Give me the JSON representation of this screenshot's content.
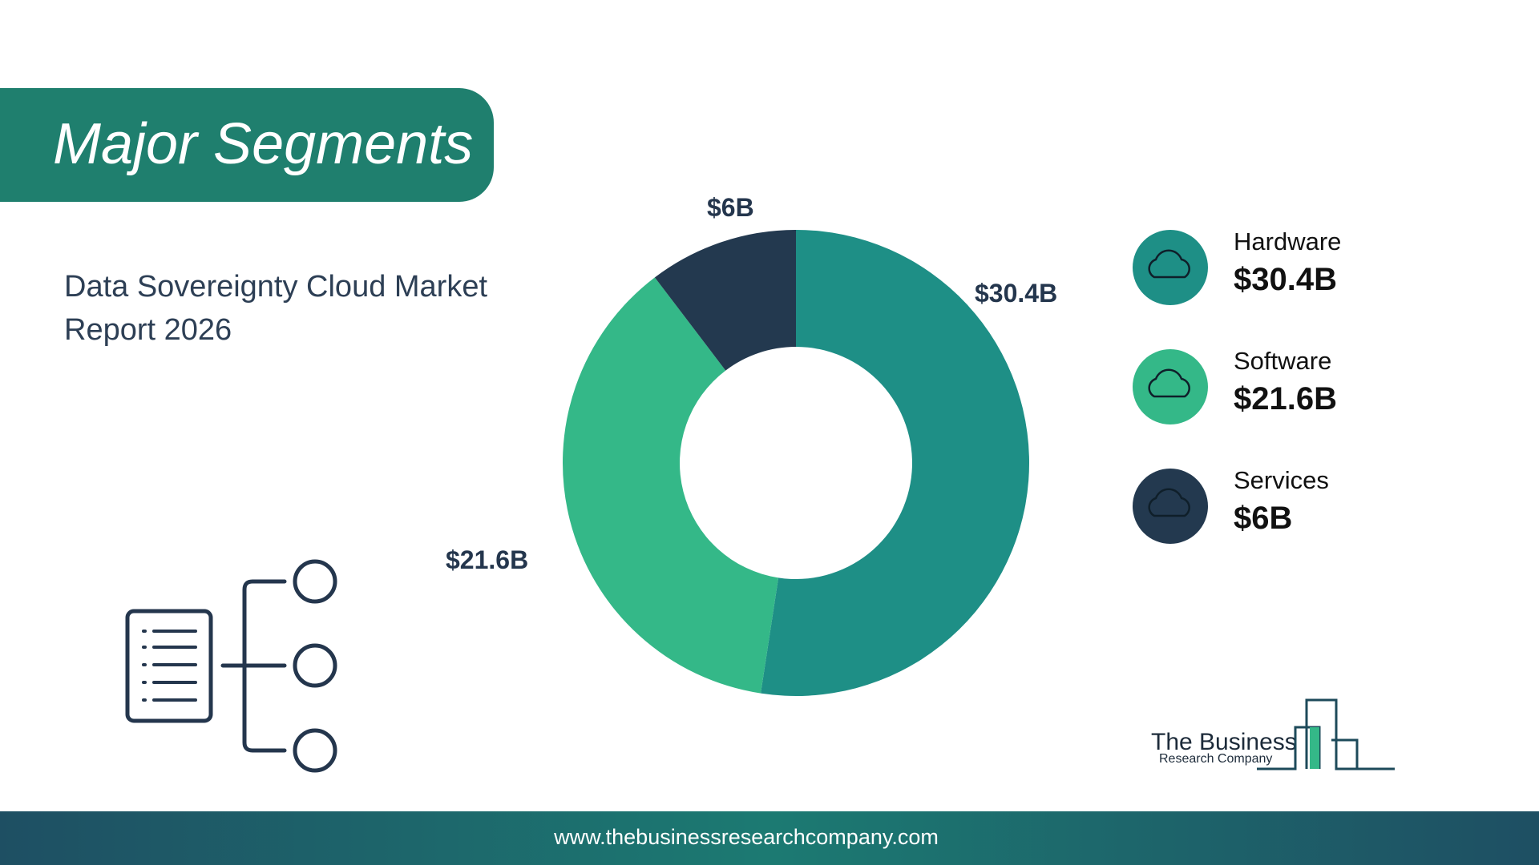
{
  "header": {
    "title": "Major Segments",
    "subtitle_lines": [
      "Data Sovereignty Cloud Market",
      "Report 2026"
    ]
  },
  "chart_data": {
    "type": "donut",
    "categories": [
      "Hardware",
      "Software",
      "Services"
    ],
    "values": [
      30.4,
      21.6,
      6
    ],
    "value_labels": [
      "$30.4B",
      "$21.6B",
      "$6B"
    ],
    "colors": [
      "#1e8f86",
      "#34b888",
      "#23394f"
    ]
  },
  "logo": {
    "line1": "The Business",
    "line2": "Research Company"
  },
  "footer": {
    "url": "www.thebusinessresearchcompany.com"
  }
}
